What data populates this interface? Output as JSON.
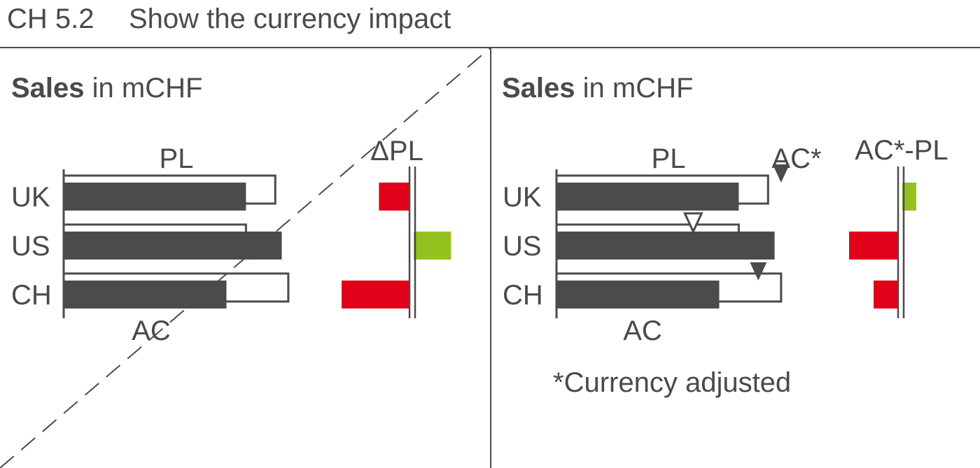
{
  "header": {
    "code": "CH 5.2",
    "title": "Show the currency impact"
  },
  "colors": {
    "ac": "#4b4b4d",
    "outline": "#4b4b4d",
    "negative": "#e2001a",
    "positive": "#95c11f",
    "text": "#4a4a4a",
    "dashed_line": "#4b4b4d"
  },
  "left_panel": {
    "title_bold": "Sales",
    "title_rest": " in mCHF",
    "pl_label": "PL",
    "ac_label": "AC",
    "delta_label": "ΔPL",
    "crossed_out": true
  },
  "right_panel": {
    "title_bold": "Sales",
    "title_rest": " in mCHF",
    "pl_label": "PL",
    "ac_label": "AC",
    "acstar_label": "AC*",
    "delta_label": "AC*-PL",
    "footnote": "*Currency adjusted"
  },
  "chart_data": [
    {
      "type": "bar",
      "title": "Sales in mCHF",
      "categories": [
        "UK",
        "US",
        "CH"
      ],
      "series": [
        {
          "name": "AC",
          "values": [
            5.6,
            6.7,
            5.0
          ]
        },
        {
          "name": "PL",
          "values": [
            6.5,
            5.6,
            6.9
          ]
        }
      ],
      "xlim": [
        0,
        7
      ],
      "variance": {
        "name": "ΔPL",
        "values": [
          -0.9,
          1.1,
          -2.0
        ]
      }
    },
    {
      "type": "bar",
      "title": "Sales in mCHF",
      "categories": [
        "UK",
        "US",
        "CH"
      ],
      "series": [
        {
          "name": "AC",
          "values": [
            5.6,
            6.7,
            5.0
          ]
        },
        {
          "name": "PL",
          "values": [
            6.5,
            5.6,
            6.9
          ]
        },
        {
          "name": "AC*",
          "values": [
            6.9,
            4.2,
            6.2
          ]
        }
      ],
      "xlim": [
        0,
        7
      ],
      "variance": {
        "name": "AC*-PL",
        "values": [
          0.4,
          -1.4,
          -0.7
        ]
      },
      "footnote": "*Currency adjusted"
    }
  ]
}
